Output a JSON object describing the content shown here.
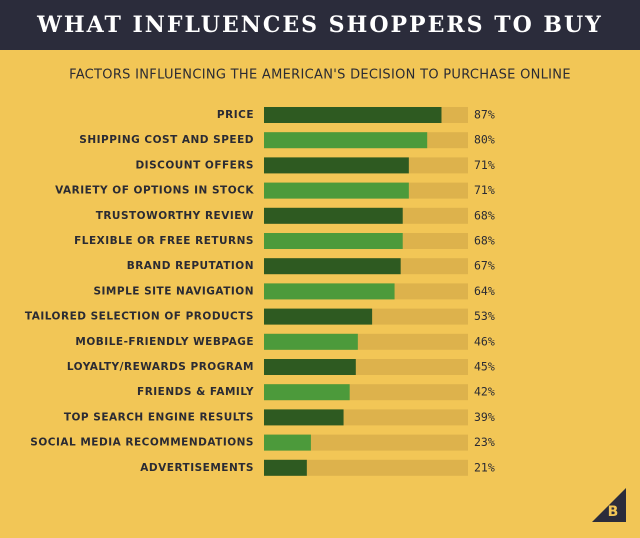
{
  "chart_data": {
    "type": "hbar",
    "title": "WHAT INFLUENCES SHOPPERS TO BUY",
    "subtitle": "FACTORS INFLUENCING THE AMERICAN'S DECISION TO PURCHASE ONLINE",
    "categories": [
      "PRICE",
      "SHIPPING COST AND SPEED",
      "DISCOUNT OFFERS",
      "VARIETY OF OPTIONS IN STOCK",
      "TRUSTOWORTHY REVIEW",
      "FLEXIBLE OR FREE RETURNS",
      "BRAND REPUTATION",
      "SIMPLE SITE NAVIGATION",
      "TAILORED SELECTION OF PRODUCTS",
      "MOBILE-FRIENDLY WEBPAGE",
      "LOYALTY/REWARDS PROGRAM",
      "FRIENDS & FAMILY",
      "TOP SEARCH ENGINE RESULTS",
      "SOCIAL MEDIA RECOMMENDATIONS",
      "ADVERTISEMENTS"
    ],
    "values": [
      87,
      80,
      71,
      71,
      68,
      68,
      67,
      64,
      53,
      46,
      45,
      42,
      39,
      23,
      21
    ],
    "value_labels": [
      "87%",
      "80%",
      "71%",
      "71%",
      "68%",
      "68%",
      "67%",
      "64%",
      "53%",
      "46%",
      "45%",
      "42%",
      "39%",
      "23%",
      "21%"
    ],
    "colors": [
      "#2e5a21",
      "#4c9a3b"
    ],
    "track_color": "#ddb24c",
    "xlim": [
      0,
      100
    ],
    "logo": "B"
  }
}
